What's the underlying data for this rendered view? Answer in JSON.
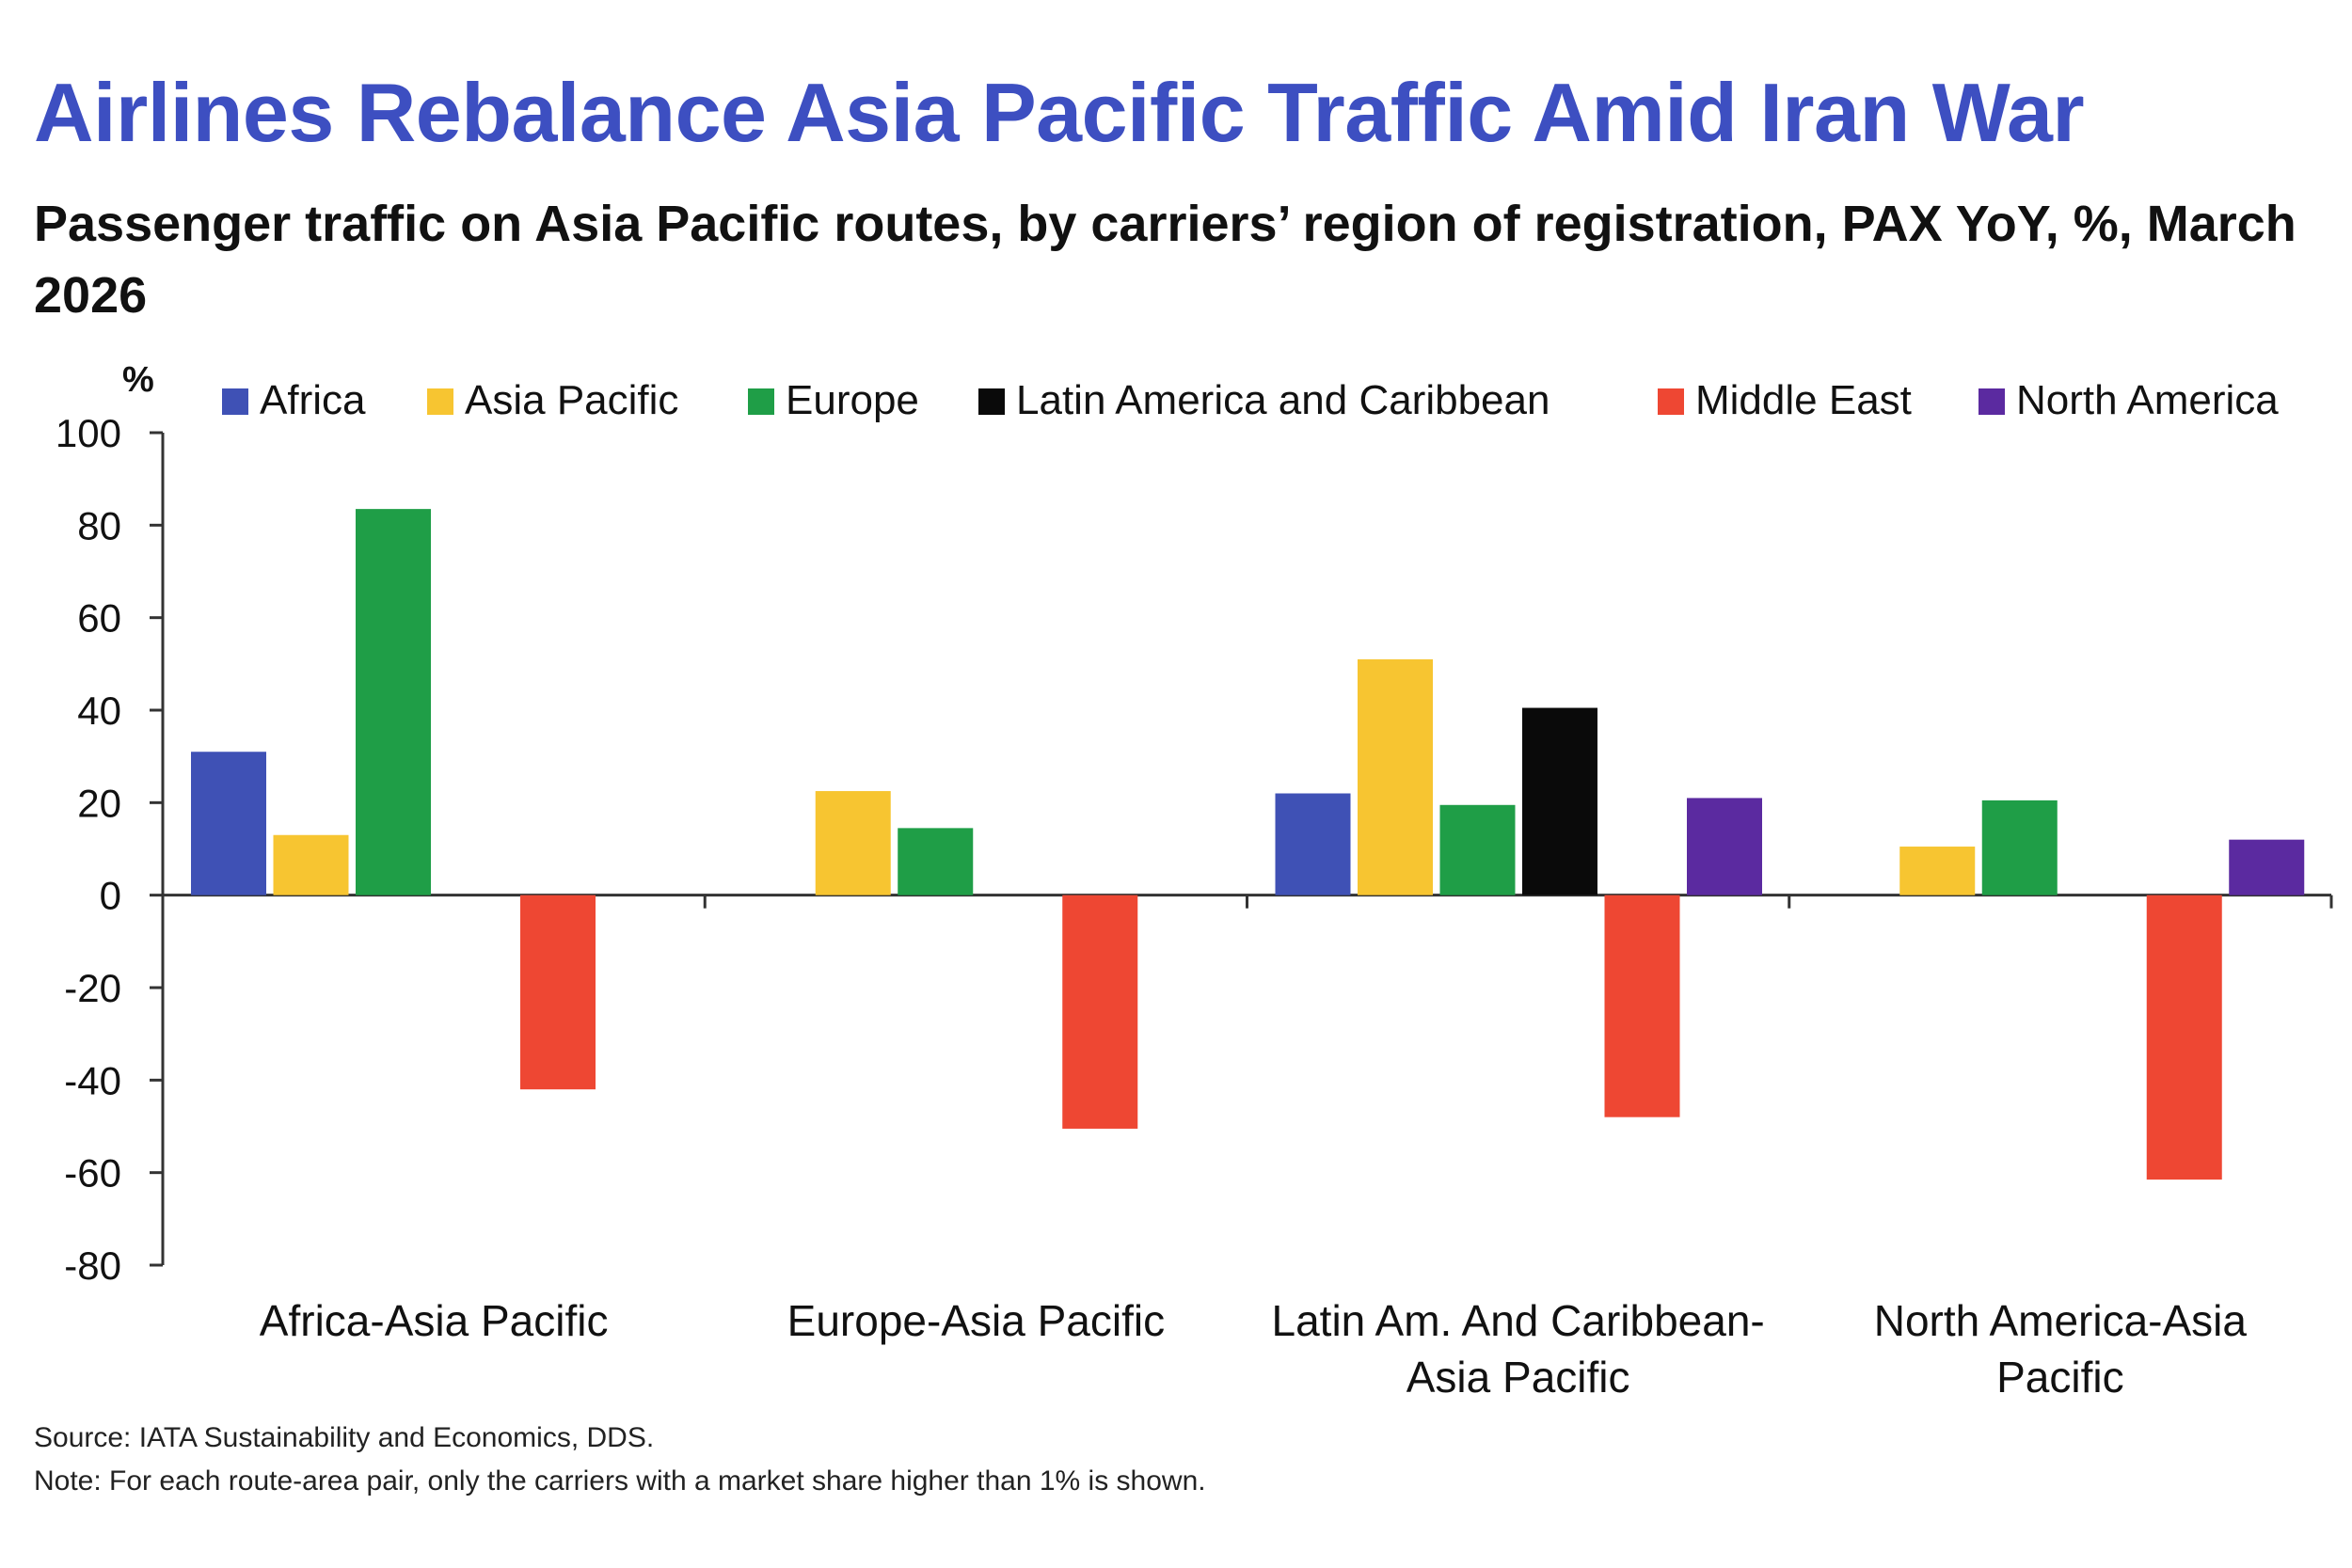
{
  "title": "Airlines Rebalance Asia Pacific Traffic Amid Iran War",
  "subtitle": "Passenger traffic on Asia Pacific routes, by carriers’ region of registration, PAX YoY, %, March 2026",
  "footer": {
    "source": "Source: IATA Sustainability and Economics, DDS.",
    "note": "Note: For each route-area pair, only the carriers with a market share higher than 1% is shown."
  },
  "colors": {
    "title": "#3d4fc1",
    "axis": "#333333",
    "text": "#111111"
  },
  "chart_data": {
    "type": "bar",
    "title": "Airlines Rebalance Asia Pacific Traffic Amid Iran War",
    "subtitle": "Passenger traffic on Asia Pacific routes, by carriers’ region of registration, PAX YoY, %, March 2026",
    "xlabel": "",
    "ylabel": "%",
    "ylim": [
      -80,
      100
    ],
    "yticks": [
      100,
      80,
      60,
      40,
      20,
      0,
      -20,
      -40,
      -60,
      -80
    ],
    "grid": false,
    "legend_position": "top",
    "categories": [
      [
        "Africa-Asia Pacific"
      ],
      [
        "Europe-Asia Pacific"
      ],
      [
        "Latin Am. And Caribbean-",
        "Asia Pacific"
      ],
      [
        "North America-Asia",
        "Pacific"
      ]
    ],
    "series": [
      {
        "name": "Africa",
        "color": "#3f51b5",
        "values": [
          31,
          null,
          22,
          null
        ]
      },
      {
        "name": "Asia Pacific",
        "color": "#f7c531",
        "values": [
          13,
          22.5,
          51,
          10.5
        ]
      },
      {
        "name": "Europe",
        "color": "#1f9e47",
        "values": [
          83.5,
          14.5,
          19.5,
          20.5
        ]
      },
      {
        "name": "Latin America and Caribbean",
        "color": "#0a0a0a",
        "values": [
          null,
          null,
          40.5,
          null
        ]
      },
      {
        "name": "Middle East",
        "color": "#ee4733",
        "values": [
          -42,
          -50.5,
          -48,
          -61.5
        ]
      },
      {
        "name": "North America",
        "color": "#5b2aa0",
        "values": [
          null,
          null,
          21,
          12
        ]
      }
    ]
  }
}
